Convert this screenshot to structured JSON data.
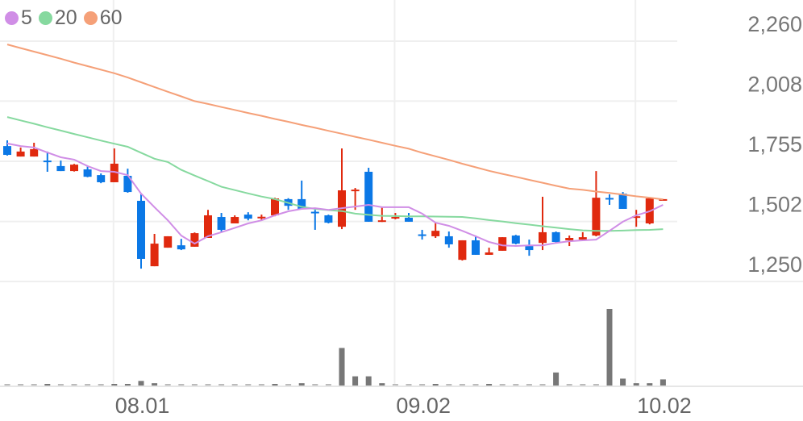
{
  "chart_data": {
    "type": "candlestick",
    "legend": {
      "placement": "top-left",
      "items": [
        {
          "label": "5",
          "color": "#d08ee6"
        },
        {
          "label": "20",
          "color": "#86d99f"
        },
        {
          "label": "60",
          "color": "#f5a078"
        }
      ]
    },
    "colors": {
      "up": "#e0290e",
      "down": "#0b78e6",
      "volume": "#777777",
      "grid": "#efefef"
    },
    "y_axis": {
      "position": "right",
      "ylim": [
        1250,
        2260
      ],
      "ticks": [
        "2,260",
        "2,008",
        "1,755",
        "1,502",
        "1,250"
      ],
      "tick_values": [
        2260,
        2008,
        1755,
        1502,
        1250
      ]
    },
    "x_axis": {
      "ticks": [
        {
          "label": "08.01",
          "index": 8
        },
        {
          "label": "09.02",
          "index": 29
        },
        {
          "label": "10.02",
          "index": 47
        }
      ]
    },
    "grid": true,
    "ohlc": [
      [
        1819,
        1843,
        1779,
        1782
      ],
      [
        1775,
        1813,
        1775,
        1796
      ],
      [
        1775,
        1833,
        1775,
        1806
      ],
      [
        1758,
        1796,
        1711,
        1755
      ],
      [
        1735,
        1758,
        1714,
        1714
      ],
      [
        1714,
        1744,
        1712,
        1741
      ],
      [
        1721,
        1735,
        1688,
        1690
      ],
      [
        1697,
        1704,
        1663,
        1667
      ],
      [
        1667,
        1809,
        1667,
        1745
      ],
      [
        1694,
        1724,
        1623,
        1626
      ],
      [
        1589,
        1616,
        1304,
        1345
      ],
      [
        1314,
        1450,
        1314,
        1409
      ],
      [
        1392,
        1440,
        1392,
        1440
      ],
      [
        1402,
        1429,
        1382,
        1385
      ],
      [
        1396,
        1456,
        1396,
        1453
      ],
      [
        1433,
        1551,
        1433,
        1528
      ],
      [
        1521,
        1538,
        1457,
        1467
      ],
      [
        1494,
        1528,
        1494,
        1521
      ],
      [
        1531,
        1541,
        1507,
        1514
      ],
      [
        1519,
        1531,
        1507,
        1522
      ],
      [
        1528,
        1602,
        1524,
        1599
      ],
      [
        1596,
        1600,
        1551,
        1568
      ],
      [
        1596,
        1674,
        1552,
        1555
      ],
      [
        1543,
        1551,
        1467,
        1541
      ],
      [
        1528,
        1531,
        1494,
        1497
      ],
      [
        1480,
        1809,
        1470,
        1633
      ],
      [
        1633,
        1643,
        1551,
        1636
      ],
      [
        1711,
        1728,
        1501,
        1501
      ],
      [
        1504,
        1562,
        1500,
        1507
      ],
      [
        1519,
        1538,
        1511,
        1521
      ],
      [
        1518,
        1538,
        1501,
        1501
      ],
      [
        1448,
        1467,
        1426,
        1446
      ],
      [
        1440,
        1497,
        1433,
        1463
      ],
      [
        1440,
        1460,
        1392,
        1406
      ],
      [
        1341,
        1423,
        1338,
        1423
      ],
      [
        1423,
        1443,
        1362,
        1362
      ],
      [
        1362,
        1392,
        1362,
        1372
      ],
      [
        1379,
        1436,
        1379,
        1436
      ],
      [
        1443,
        1446,
        1406,
        1409
      ],
      [
        1399,
        1426,
        1358,
        1382
      ],
      [
        1412,
        1606,
        1382,
        1457
      ],
      [
        1457,
        1460,
        1413,
        1416
      ],
      [
        1423,
        1443,
        1399,
        1433
      ],
      [
        1426,
        1457,
        1423,
        1436
      ],
      [
        1443,
        1714,
        1440,
        1602
      ],
      [
        1601,
        1616,
        1572,
        1599
      ],
      [
        1619,
        1626,
        1555,
        1555
      ],
      [
        1522,
        1551,
        1480,
        1524
      ],
      [
        1494,
        1599,
        1490,
        1599
      ],
      [
        1594,
        1596,
        1594,
        1596
      ]
    ],
    "ma5": [
      1830,
      1819,
      1813,
      1792,
      1772,
      1762,
      1735,
      1714,
      1711,
      1697,
      1619,
      1562,
      1507,
      1443,
      1409,
      1440,
      1457,
      1475,
      1494,
      1507,
      1528,
      1545,
      1555,
      1558,
      1551,
      1558,
      1565,
      1572,
      1562,
      1562,
      1562,
      1535,
      1497,
      1484,
      1463,
      1440,
      1416,
      1402,
      1399,
      1402,
      1402,
      1412,
      1419,
      1423,
      1426,
      1463,
      1501,
      1528,
      1545,
      1572
    ],
    "ma20": [
      1941,
      1927,
      1913,
      1898,
      1884,
      1870,
      1856,
      1842,
      1829,
      1816,
      1791,
      1766,
      1752,
      1719,
      1695,
      1672,
      1648,
      1634,
      1620,
      1607,
      1596,
      1580,
      1564,
      1555,
      1550,
      1546,
      1535,
      1530,
      1526,
      1525,
      1524,
      1524,
      1523,
      1522,
      1521,
      1515,
      1508,
      1502,
      1495,
      1489,
      1482,
      1476,
      1470,
      1465,
      1463,
      1463,
      1464,
      1466,
      1467,
      1470
    ],
    "ma60": [
      2246,
      2231,
      2216,
      2201,
      2186,
      2170,
      2155,
      2140,
      2125,
      2107,
      2087,
      2067,
      2047,
      2028,
      2008,
      1996,
      1983,
      1971,
      1958,
      1946,
      1933,
      1921,
      1908,
      1896,
      1883,
      1871,
      1858,
      1846,
      1833,
      1820,
      1808,
      1791,
      1776,
      1761,
      1745,
      1730,
      1715,
      1702,
      1690,
      1677,
      1665,
      1652,
      1640,
      1635,
      1628,
      1622,
      1615,
      1608,
      1602,
      1595
    ],
    "volume_relative": [
      1,
      1,
      1,
      2,
      1,
      1,
      1,
      1,
      2,
      2,
      6,
      3,
      1,
      1,
      1,
      1,
      1,
      1,
      1,
      1,
      2,
      1,
      3,
      1,
      1,
      49,
      12,
      12,
      3,
      1,
      1,
      1,
      2,
      1,
      1,
      1,
      2,
      1,
      1,
      1,
      1,
      17,
      1,
      1,
      1,
      100,
      9,
      3,
      3,
      8
    ]
  }
}
